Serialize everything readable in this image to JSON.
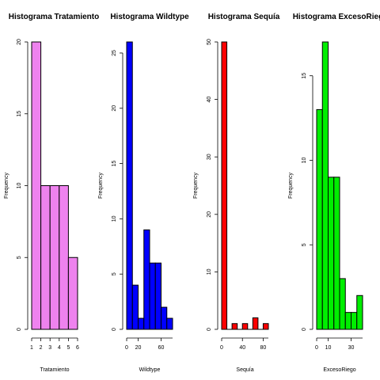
{
  "chart_data": [
    {
      "type": "bar",
      "title": "Histograma Tratamiento",
      "xlabel": "Tratamiento",
      "ylabel": "Frequency",
      "color": "#ee82ee",
      "x_breaks": [
        1,
        2,
        3,
        4,
        5,
        6
      ],
      "x_ticks": [
        1,
        2,
        3,
        4,
        5,
        6
      ],
      "y_ticks": [
        0,
        5,
        10,
        15,
        20
      ],
      "ylim": [
        0,
        20
      ],
      "values": [
        20,
        10,
        10,
        10,
        5
      ],
      "grid": false
    },
    {
      "type": "bar",
      "title": "Histograma Wildtype",
      "xlabel": "Wildtype",
      "ylabel": "Frequency",
      "color": "#0000ff",
      "x_breaks": [
        0,
        10,
        20,
        30,
        40,
        50,
        60,
        70,
        80
      ],
      "x_ticks": [
        0,
        20,
        60
      ],
      "y_ticks": [
        0,
        5,
        10,
        15,
        20,
        25
      ],
      "ylim": [
        0,
        26
      ],
      "values": [
        26,
        4,
        1,
        9,
        6,
        6,
        2,
        1
      ],
      "grid": false
    },
    {
      "type": "bar",
      "title": "Histograma Sequía",
      "xlabel": "Sequía",
      "ylabel": "Frequency",
      "color": "#ff0000",
      "x_breaks": [
        0,
        10,
        20,
        30,
        40,
        50,
        60,
        70,
        80,
        90
      ],
      "x_ticks": [
        0,
        40,
        80
      ],
      "y_ticks": [
        0,
        10,
        20,
        30,
        40,
        50
      ],
      "ylim": [
        0,
        50
      ],
      "values": [
        50,
        0,
        1,
        0,
        1,
        0,
        2,
        0,
        1
      ],
      "grid": false
    },
    {
      "type": "bar",
      "title": "Histograma ExcesoRiego",
      "xlabel": "ExcesoRiego",
      "ylabel": "Frequency",
      "color": "#00ee00",
      "x_breaks": [
        0,
        5,
        10,
        15,
        20,
        25,
        30,
        35,
        40
      ],
      "x_ticks": [
        0,
        10,
        30
      ],
      "y_ticks": [
        0,
        5,
        10,
        15
      ],
      "ylim": [
        0,
        17
      ],
      "values": [
        13,
        17,
        9,
        9,
        3,
        1,
        1,
        2
      ],
      "grid": false
    }
  ]
}
